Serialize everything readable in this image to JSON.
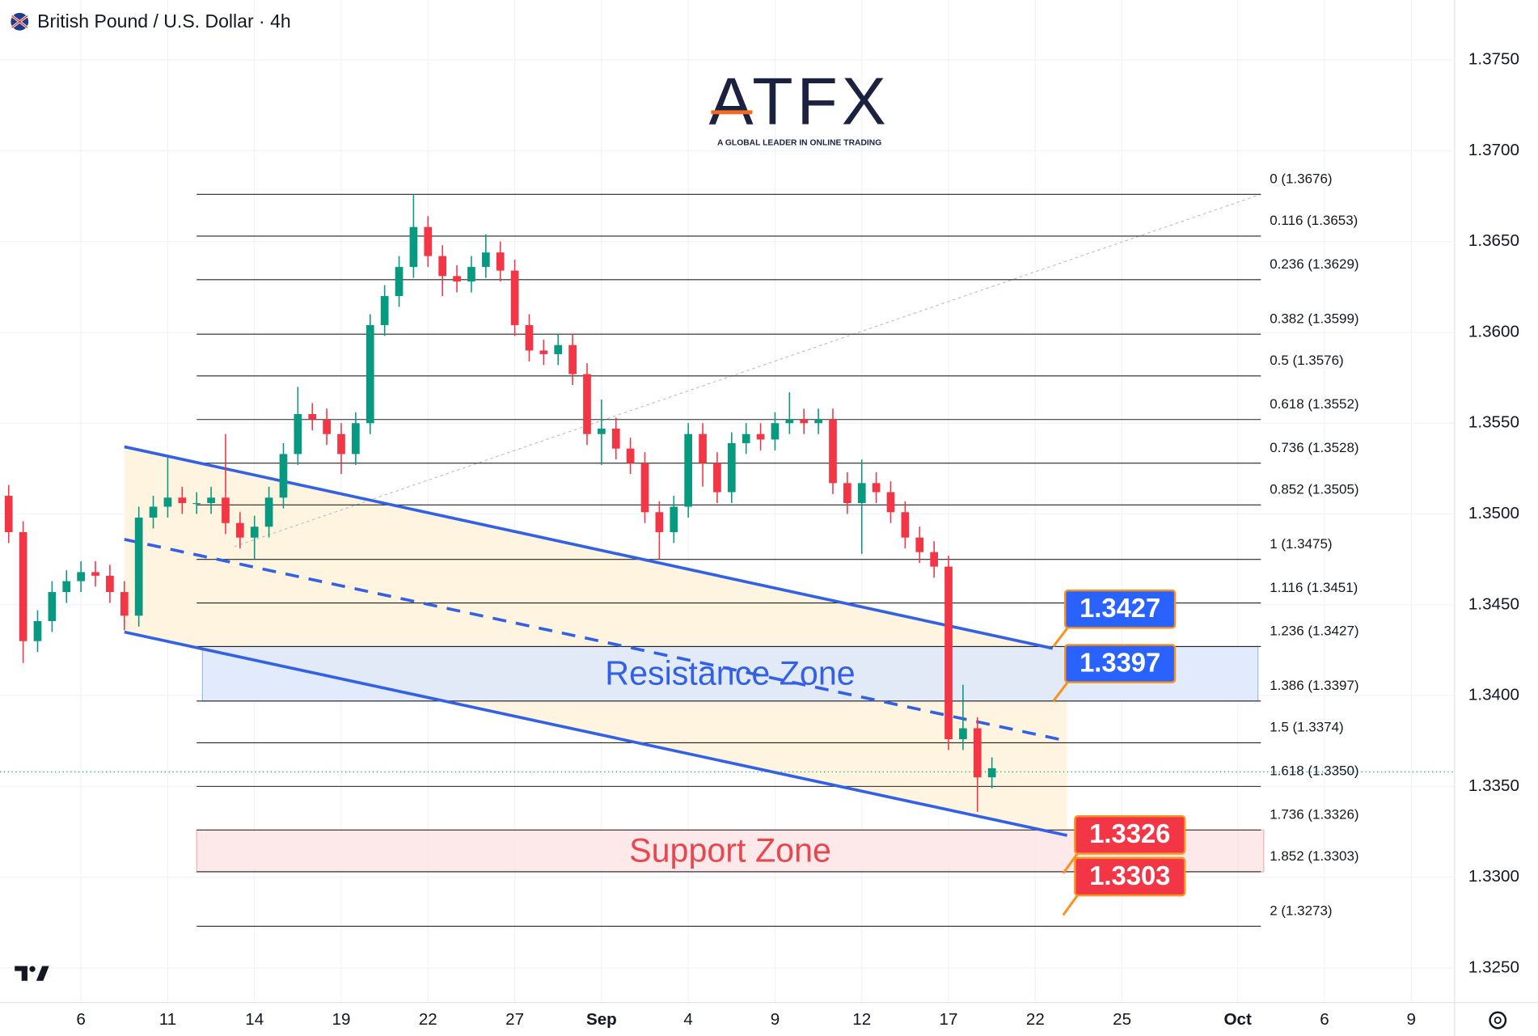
{
  "chart_data": {
    "type": "candlestick",
    "title": "British Pound / U.S. Dollar · 4h",
    "logo": {
      "name": "ATFX",
      "tagline": "A GLOBAL LEADER IN ONLINE TRADING"
    },
    "xlim": [
      -2.8,
      47.5
    ],
    "ylim": [
      1.3231,
      1.3783
    ],
    "grid": true,
    "xticks": [
      {
        "value": 0,
        "label": "6"
      },
      {
        "value": 3,
        "label": "11"
      },
      {
        "value": 6,
        "label": "14"
      },
      {
        "value": 9,
        "label": "19"
      },
      {
        "value": 12,
        "label": "22"
      },
      {
        "value": 15,
        "label": "27"
      },
      {
        "value": 18,
        "label": "Sep"
      },
      {
        "value": 21,
        "label": "4"
      },
      {
        "value": 24,
        "label": "9"
      },
      {
        "value": 27,
        "label": "12"
      },
      {
        "value": 30,
        "label": "17"
      },
      {
        "value": 33,
        "label": "22"
      },
      {
        "value": 36,
        "label": "25"
      },
      {
        "value": 40,
        "label": "Oct"
      },
      {
        "value": 43,
        "label": "6"
      },
      {
        "value": 46,
        "label": "9"
      }
    ],
    "yticks": [
      {
        "value": 1.325,
        "label": "1.3250"
      },
      {
        "value": 1.33,
        "label": "1.3300"
      },
      {
        "value": 1.335,
        "label": "1.3350"
      },
      {
        "value": 1.34,
        "label": "1.3400"
      },
      {
        "value": 1.345,
        "label": "1.3450"
      },
      {
        "value": 1.35,
        "label": "1.3500"
      },
      {
        "value": 1.355,
        "label": "1.3550"
      },
      {
        "value": 1.36,
        "label": "1.3600"
      },
      {
        "value": 1.365,
        "label": "1.3650"
      },
      {
        "value": 1.37,
        "label": "1.3700"
      },
      {
        "value": 1.375,
        "label": "1.3750"
      }
    ],
    "up_color": "#089981",
    "down_color": "#f23645",
    "x": [
      -2.5,
      -2,
      -1.5,
      -1,
      -0.5,
      0,
      0.5,
      1,
      1.5,
      2,
      2.5,
      3,
      3.5,
      4,
      4.5,
      5,
      5.5,
      6,
      6.5,
      7,
      7.5,
      8,
      8.5,
      9,
      9.5,
      10,
      10.5,
      11,
      11.5,
      12,
      12.5,
      13,
      13.5,
      14,
      14.5,
      15,
      15.5,
      16,
      16.5,
      17,
      17.5,
      18,
      18.5,
      19,
      19.5,
      20,
      20.5,
      21,
      21.5,
      22,
      22.5,
      23,
      23.5,
      24,
      24.5,
      25,
      25.5,
      26,
      26.5,
      27,
      27.5,
      28,
      28.5,
      29,
      29.5,
      30,
      30.5,
      31,
      31.5
    ],
    "open": [
      1.351,
      1.349,
      1.343,
      1.3441,
      1.3457,
      1.3463,
      1.3468,
      1.3466,
      1.3457,
      1.3444,
      1.3498,
      1.3504,
      1.3509,
      1.3506,
      1.3506,
      1.3509,
      1.3495,
      1.3487,
      1.3493,
      1.3509,
      1.3533,
      1.3555,
      1.3552,
      1.3544,
      1.3533,
      1.355,
      1.3604,
      1.362,
      1.3636,
      1.3658,
      1.3642,
      1.3631,
      1.3628,
      1.3636,
      1.3644,
      1.3634,
      1.3604,
      1.359,
      1.3588,
      1.3593,
      1.3577,
      1.3544,
      1.3547,
      1.3536,
      1.3528,
      1.3501,
      1.349,
      1.3504,
      1.3544,
      1.3528,
      1.3512,
      1.3539,
      1.3544,
      1.3541,
      1.355,
      1.3552,
      1.355,
      1.3552,
      1.3517,
      1.3506,
      1.3517,
      1.3512,
      1.3501,
      1.3487,
      1.3479,
      1.3471,
      1.3376,
      1.3382,
      1.3355
    ],
    "high": [
      1.3516,
      1.3496,
      1.3447,
      1.3463,
      1.3469,
      1.3474,
      1.3474,
      1.3472,
      1.3463,
      1.3504,
      1.351,
      1.3531,
      1.3515,
      1.3512,
      1.3515,
      1.3544,
      1.3501,
      1.3499,
      1.3515,
      1.3539,
      1.357,
      1.3561,
      1.3558,
      1.355,
      1.3556,
      1.361,
      1.3626,
      1.3642,
      1.3676,
      1.3664,
      1.3648,
      1.3637,
      1.3642,
      1.3654,
      1.365,
      1.364,
      1.361,
      1.3596,
      1.3599,
      1.3599,
      1.3583,
      1.3563,
      1.3553,
      1.3542,
      1.3534,
      1.3507,
      1.351,
      1.355,
      1.355,
      1.3534,
      1.3545,
      1.355,
      1.355,
      1.3556,
      1.3567,
      1.3558,
      1.3558,
      1.3558,
      1.3523,
      1.353,
      1.3523,
      1.3518,
      1.3507,
      1.3493,
      1.3485,
      1.3477,
      1.3406,
      1.3388,
      1.3366
    ],
    "low": [
      1.3484,
      1.3418,
      1.3424,
      1.3435,
      1.3451,
      1.3457,
      1.346,
      1.3451,
      1.3436,
      1.3438,
      1.3492,
      1.3498,
      1.35,
      1.35,
      1.35,
      1.3489,
      1.3481,
      1.3475,
      1.3487,
      1.3503,
      1.3527,
      1.3546,
      1.3538,
      1.3522,
      1.3527,
      1.3544,
      1.3598,
      1.3614,
      1.363,
      1.3636,
      1.362,
      1.3622,
      1.3622,
      1.363,
      1.3628,
      1.3598,
      1.3584,
      1.3582,
      1.3582,
      1.3571,
      1.3538,
      1.3527,
      1.353,
      1.3522,
      1.3495,
      1.3475,
      1.3484,
      1.3498,
      1.3515,
      1.3506,
      1.3506,
      1.3533,
      1.3535,
      1.3535,
      1.3544,
      1.3544,
      1.3544,
      1.3511,
      1.35,
      1.3478,
      1.3506,
      1.3495,
      1.3481,
      1.3473,
      1.3465,
      1.337,
      1.337,
      1.3336,
      1.3349
    ],
    "close": [
      1.349,
      1.343,
      1.3441,
      1.3457,
      1.3463,
      1.3468,
      1.3466,
      1.3457,
      1.3444,
      1.3498,
      1.3504,
      1.3509,
      1.3506,
      1.3506,
      1.3509,
      1.3495,
      1.3487,
      1.3493,
      1.3509,
      1.3533,
      1.3555,
      1.3552,
      1.3544,
      1.3533,
      1.355,
      1.3604,
      1.362,
      1.3636,
      1.3658,
      1.3642,
      1.3631,
      1.3628,
      1.3636,
      1.3644,
      1.3634,
      1.3604,
      1.359,
      1.3588,
      1.3593,
      1.3577,
      1.3544,
      1.3547,
      1.3536,
      1.3528,
      1.3501,
      1.349,
      1.3504,
      1.3544,
      1.3528,
      1.3512,
      1.3539,
      1.3544,
      1.3541,
      1.355,
      1.3552,
      1.355,
      1.3552,
      1.3517,
      1.3506,
      1.3517,
      1.3512,
      1.3501,
      1.3487,
      1.3479,
      1.3471,
      1.3376,
      1.3382,
      1.3355,
      1.336
    ],
    "last_price": {
      "value": 1.3358,
      "color": "#089981"
    },
    "fib_x": [
      4.0,
      40.8
    ],
    "fib_anchor": {
      "x": [
        5.3,
        40.8
      ],
      "y": [
        1.3482,
        1.3676
      ]
    },
    "fib_levels": [
      {
        "label": "0 (1.3676)",
        "value": 1.3676
      },
      {
        "label": "0.116 (1.3653)",
        "value": 1.3653
      },
      {
        "label": "0.236 (1.3629)",
        "value": 1.3629
      },
      {
        "label": "0.382 (1.3599)",
        "value": 1.3599
      },
      {
        "label": "0.5 (1.3576)",
        "value": 1.3576
      },
      {
        "label": "0.618 (1.3552)",
        "value": 1.3552
      },
      {
        "label": "0.736 (1.3528)",
        "value": 1.3528
      },
      {
        "label": "0.852 (1.3505)",
        "value": 1.3505
      },
      {
        "label": "1 (1.3475)",
        "value": 1.3475
      },
      {
        "label": "1.116 (1.3451)",
        "value": 1.3451
      },
      {
        "label": "1.236 (1.3427)",
        "value": 1.3427
      },
      {
        "label": "1.386 (1.3397)",
        "value": 1.3397
      },
      {
        "label": "1.5 (1.3374)",
        "value": 1.3374
      },
      {
        "label": "1.618 (1.3350)",
        "value": 1.335
      },
      {
        "label": "1.736 (1.3326)",
        "value": 1.3326
      },
      {
        "label": "1.852 (1.3303)",
        "value": 1.3303
      },
      {
        "label": "2 (1.3273)",
        "value": 1.3273
      }
    ],
    "channel_color": "#3361e6",
    "channel_fill": "#fff4e0",
    "trendlines": [
      {
        "x": [
          1.5,
          33.6
        ],
        "y": [
          1.3537,
          1.3426
        ],
        "style": "solid"
      },
      {
        "x": [
          1.5,
          34.1
        ],
        "y": [
          1.3486,
          1.3375
        ],
        "style": "dashed"
      },
      {
        "x": [
          1.5,
          34.1
        ],
        "y": [
          1.3435,
          1.3323
        ],
        "style": "solid"
      }
    ],
    "zones": [
      {
        "label": "Resistance Zone",
        "range": [
          1.3397,
          1.3427
        ],
        "x": [
          4.2,
          40.7
        ],
        "color": "#3361e6",
        "fill": "#dde8fb"
      },
      {
        "label": "Support Zone",
        "range": [
          1.3303,
          1.3326
        ],
        "x": [
          4.0,
          40.9
        ],
        "color": "#e8474f",
        "fill": "#fde4e6"
      }
    ],
    "callouts": {
      "values": [
        1.3427,
        1.3397,
        1.3326,
        1.3303
      ],
      "colors": [
        "#2962ff",
        "#2962ff",
        "#f23645",
        "#f23645"
      ]
    }
  }
}
